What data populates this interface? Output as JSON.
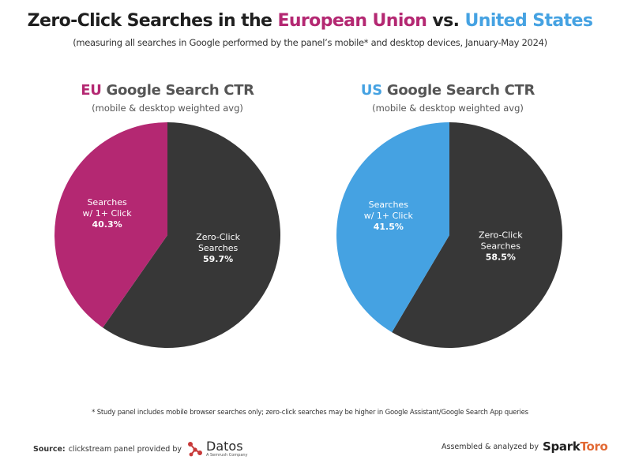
{
  "header": {
    "title_part1": "Zero-Click Searches in the ",
    "title_eu": "European Union",
    "title_vs": " vs. ",
    "title_us": "United States",
    "subtitle": "(measuring all searches in Google performed by the panel’s mobile* and desktop devices, January-May 2024)"
  },
  "colors": {
    "eu": "#b42872",
    "us": "#45a2e2",
    "zero_click": "#373737",
    "sparktoro_accent": "#e26a35"
  },
  "chart_data": [
    {
      "type": "pie",
      "title_prefix": "EU",
      "title_rest": " Google Search CTR",
      "subtitle": "(mobile & desktop weighted avg)",
      "slices": [
        {
          "label_line1": "Zero-Click",
          "label_line2": "Searches",
          "value": 59.7,
          "value_label": "59.7%",
          "color": "#373737"
        },
        {
          "label_line1": "Searches",
          "label_line2": "w/ 1+ Click",
          "value": 40.3,
          "value_label": "40.3%",
          "color": "#b42872"
        }
      ]
    },
    {
      "type": "pie",
      "title_prefix": "US",
      "title_rest": " Google Search CTR",
      "subtitle": "(mobile & desktop weighted avg)",
      "slices": [
        {
          "label_line1": "Zero-Click",
          "label_line2": "Searches",
          "value": 58.5,
          "value_label": "58.5%",
          "color": "#373737"
        },
        {
          "label_line1": "Searches",
          "label_line2": "w/ 1+ Click",
          "value": 41.5,
          "value_label": "41.5%",
          "color": "#45a2e2"
        }
      ]
    }
  ],
  "footer": {
    "footnote": "Study panel includes mobile browser searches only; zero-click searches may be higher in Google Assistant/Google Search App queries",
    "footnote_mark": "*",
    "source_label": "Source:",
    "source_text": "clickstream panel provided by",
    "datos_name": "Datos",
    "datos_sub": "A Semrush Company",
    "assembled_text": "Assembled & analyzed by",
    "sparktoro_part1": "Spark",
    "sparktoro_part2": "Toro"
  }
}
